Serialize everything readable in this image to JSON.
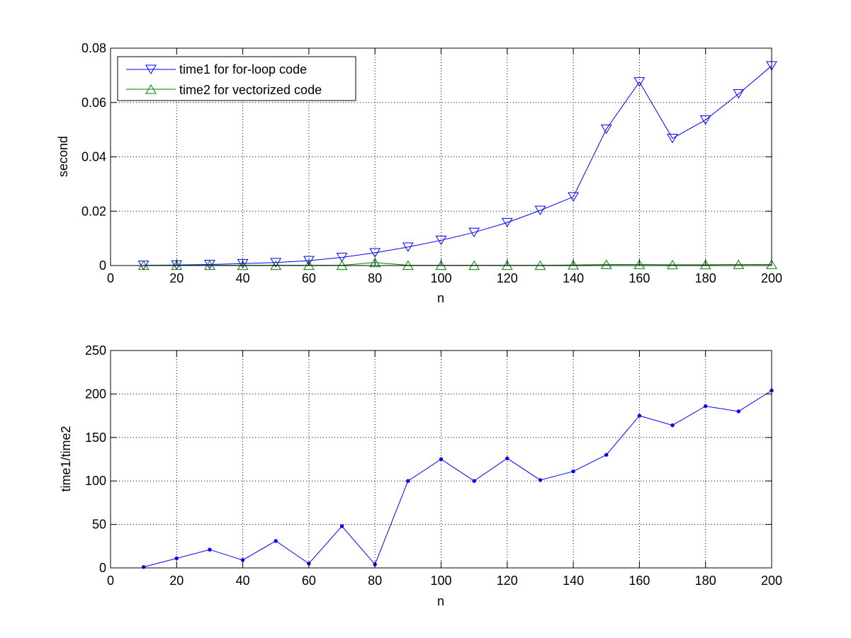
{
  "chart_data": [
    {
      "type": "line",
      "title": "",
      "xlabel": "n",
      "ylabel": "second",
      "xlim": [
        0,
        200
      ],
      "ylim": [
        0,
        0.08
      ],
      "xticks": [
        0,
        20,
        40,
        60,
        80,
        100,
        120,
        140,
        160,
        180,
        200
      ],
      "yticks": [
        0,
        0.02,
        0.04,
        0.06,
        0.08
      ],
      "ytick_labels": [
        "0",
        "0.02",
        "0.04",
        "0.06",
        "0.08"
      ],
      "grid": true,
      "legend_position": "top-left",
      "x": [
        10,
        20,
        30,
        40,
        50,
        60,
        70,
        80,
        90,
        100,
        110,
        120,
        130,
        140,
        150,
        160,
        170,
        180,
        190,
        200
      ],
      "series": [
        {
          "name": "time1 for for-loop code",
          "color": "#0000ff",
          "marker": "triangle-down",
          "values": [
            0.0001,
            0.0002,
            0.0004,
            0.0007,
            0.0011,
            0.0018,
            0.003,
            0.0047,
            0.0068,
            0.0093,
            0.0122,
            0.0158,
            0.0203,
            0.0253,
            0.0502,
            0.0676,
            0.0468,
            0.0536,
            0.0632,
            0.0735
          ]
        },
        {
          "name": "time2 for vectorized code",
          "color": "#008000",
          "marker": "triangle-up",
          "values": [
            0.0001,
            0.0001,
            0.0001,
            0.0001,
            0.0001,
            0.0001,
            0.0001,
            0.0011,
            0.0001,
            0.0001,
            0.0001,
            0.0001,
            0.0001,
            0.0002,
            0.0004,
            0.0004,
            0.0003,
            0.0003,
            0.0004,
            0.0004
          ]
        }
      ]
    },
    {
      "type": "line",
      "title": "",
      "xlabel": "n",
      "ylabel": "time1/time2",
      "xlim": [
        0,
        200
      ],
      "ylim": [
        0,
        250
      ],
      "xticks": [
        0,
        20,
        40,
        60,
        80,
        100,
        120,
        140,
        160,
        180,
        200
      ],
      "yticks": [
        0,
        50,
        100,
        150,
        200,
        250
      ],
      "ytick_labels": [
        "0",
        "50",
        "100",
        "150",
        "200",
        "250"
      ],
      "grid": true,
      "x": [
        10,
        20,
        30,
        40,
        50,
        60,
        70,
        80,
        90,
        100,
        110,
        120,
        130,
        140,
        150,
        160,
        170,
        180,
        190,
        200
      ],
      "series": [
        {
          "color": "#0000ff",
          "marker": "dot",
          "values": [
            1,
            11,
            21,
            9,
            31,
            5,
            48,
            4,
            100,
            125,
            100,
            126,
            101,
            111,
            130,
            175,
            164,
            186,
            180,
            204
          ]
        }
      ]
    }
  ]
}
